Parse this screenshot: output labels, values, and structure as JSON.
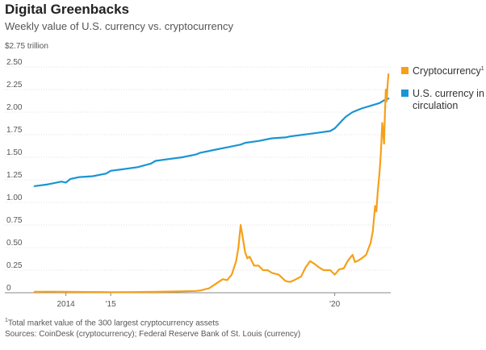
{
  "chart_data": {
    "type": "line",
    "title": "Digital Greenbacks",
    "subtitle": "Weekly value of U.S. currency vs. cryptocurrency",
    "ylabel_top": "$2.75 trillion",
    "ylim": [
      0,
      2.75
    ],
    "y_ticks": [
      {
        "value": 0,
        "label": "0"
      },
      {
        "value": 0.25,
        "label": "0.25"
      },
      {
        "value": 0.5,
        "label": "0.50"
      },
      {
        "value": 0.75,
        "label": "0.75"
      },
      {
        "value": 1.0,
        "label": "1.00"
      },
      {
        "value": 1.25,
        "label": "1.25"
      },
      {
        "value": 1.5,
        "label": "1.50"
      },
      {
        "value": 1.75,
        "label": "1.75"
      },
      {
        "value": 2.0,
        "label": "2.00"
      },
      {
        "value": 2.25,
        "label": "2.25"
      },
      {
        "value": 2.5,
        "label": "2.50"
      }
    ],
    "xlim": [
      2013.25,
      2021.25
    ],
    "x_ticks": [
      {
        "value": 2014,
        "label": "2014"
      },
      {
        "value": 2015,
        "label": "'15"
      },
      {
        "value": 2020,
        "label": "'20"
      }
    ],
    "series": [
      {
        "name": "U.S. currency in circulation",
        "legend_lines": [
          "U.S. currency in",
          "circulation"
        ],
        "color": "#1a95d3",
        "x": [
          2013.3,
          2013.6,
          2013.9,
          2014.0,
          2014.1,
          2014.3,
          2014.6,
          2014.9,
          2015.0,
          2015.3,
          2015.6,
          2015.9,
          2016.0,
          2016.3,
          2016.6,
          2016.9,
          2017.0,
          2017.3,
          2017.6,
          2017.9,
          2018.0,
          2018.3,
          2018.6,
          2018.9,
          2019.0,
          2019.3,
          2019.6,
          2019.9,
          2020.0,
          2020.15,
          2020.25,
          2020.4,
          2020.6,
          2020.8,
          2021.0,
          2021.1,
          2021.2
        ],
        "values": [
          1.18,
          1.2,
          1.23,
          1.22,
          1.26,
          1.28,
          1.29,
          1.32,
          1.35,
          1.37,
          1.39,
          1.43,
          1.46,
          1.48,
          1.5,
          1.53,
          1.55,
          1.58,
          1.61,
          1.64,
          1.66,
          1.68,
          1.71,
          1.72,
          1.73,
          1.75,
          1.77,
          1.79,
          1.82,
          1.9,
          1.95,
          2.0,
          2.04,
          2.07,
          2.1,
          2.13,
          2.15
        ]
      },
      {
        "name": "Cryptocurrency",
        "legend_lines": [
          "Cryptocurrency"
        ],
        "legend_sup": "1",
        "color": "#f6a01a",
        "x": [
          2013.3,
          2013.6,
          2014.0,
          2014.5,
          2015.0,
          2015.5,
          2016.0,
          2016.5,
          2016.9,
          2017.0,
          2017.2,
          2017.35,
          2017.5,
          2017.6,
          2017.7,
          2017.8,
          2017.85,
          2017.9,
          2017.95,
          2018.0,
          2018.05,
          2018.1,
          2018.15,
          2018.2,
          2018.3,
          2018.4,
          2018.5,
          2018.6,
          2018.75,
          2018.9,
          2019.0,
          2019.1,
          2019.25,
          2019.35,
          2019.45,
          2019.55,
          2019.65,
          2019.75,
          2019.9,
          2020.0,
          2020.1,
          2020.2,
          2020.3,
          2020.4,
          2020.45,
          2020.5,
          2020.6,
          2020.7,
          2020.8,
          2020.85,
          2020.9,
          2020.93,
          2020.96,
          2021.0,
          2021.03,
          2021.06,
          2021.08,
          2021.1,
          2021.12,
          2021.14,
          2021.16,
          2021.18,
          2021.2
        ],
        "values": [
          0.01,
          0.012,
          0.01,
          0.008,
          0.006,
          0.007,
          0.01,
          0.014,
          0.02,
          0.025,
          0.05,
          0.1,
          0.15,
          0.14,
          0.2,
          0.35,
          0.5,
          0.75,
          0.6,
          0.45,
          0.38,
          0.4,
          0.35,
          0.3,
          0.3,
          0.25,
          0.25,
          0.22,
          0.2,
          0.13,
          0.12,
          0.14,
          0.18,
          0.28,
          0.35,
          0.32,
          0.28,
          0.25,
          0.25,
          0.2,
          0.26,
          0.27,
          0.36,
          0.42,
          0.34,
          0.35,
          0.38,
          0.42,
          0.55,
          0.68,
          0.96,
          0.9,
          1.12,
          1.33,
          1.55,
          1.88,
          1.78,
          1.65,
          1.98,
          2.25,
          2.12,
          2.3,
          2.42
        ]
      }
    ],
    "notes": [
      {
        "sup": "1",
        "text": "Total market value of the 300 largest cryptocurrency assets"
      },
      {
        "sup": "",
        "text": "Sources: CoinDesk (cryptocurrency); Federal Reserve Bank of St. Louis (currency)"
      }
    ]
  }
}
